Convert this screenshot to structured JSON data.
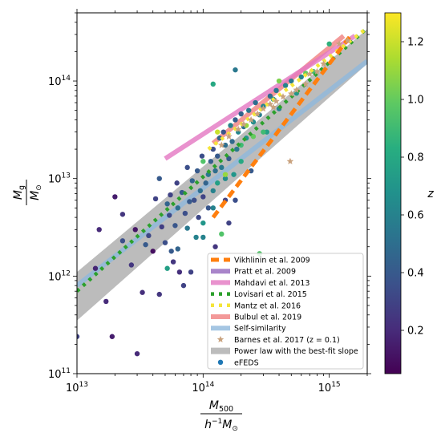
{
  "chart_data": {
    "type": "scatter",
    "x_scale": "log",
    "y_scale": "log",
    "xlim": [
      10000000000000.0,
      2000000000000000.0
    ],
    "ylim": [
      100000000000.0,
      500000000000000.0
    ],
    "grid": false,
    "legend_placement": "lower-right",
    "xlabel": {
      "top": "M500",
      "top_main": "M",
      "top_sub": "500",
      "bottom": "h^-1 M_⊙"
    },
    "ylabel": {
      "top": "Mg",
      "top_main": "M",
      "top_sub": "g",
      "bottom": "M_⊙"
    },
    "x_ticks": [
      {
        "value": 10000000000000.0,
        "base": "10",
        "exp": "13"
      },
      {
        "value": 100000000000000.0,
        "base": "10",
        "exp": "14"
      },
      {
        "value": 1000000000000000.0,
        "base": "10",
        "exp": "15"
      }
    ],
    "y_ticks": [
      {
        "value": 100000000000.0,
        "base": "10",
        "exp": "11"
      },
      {
        "value": 1000000000000.0,
        "base": "10",
        "exp": "12"
      },
      {
        "value": 10000000000000.0,
        "base": "10",
        "exp": "13"
      },
      {
        "value": 100000000000000.0,
        "base": "10",
        "exp": "14"
      }
    ],
    "colorbar": {
      "label": "z",
      "range": [
        0.05,
        1.3
      ],
      "colormap": "viridis",
      "ticks": [
        {
          "value": 0.2,
          "label": "0.2"
        },
        {
          "value": 0.4,
          "label": "0.4"
        },
        {
          "value": 0.6,
          "label": "0.6"
        },
        {
          "value": 0.8,
          "label": "0.8"
        },
        {
          "value": 1.0,
          "label": "1.0"
        },
        {
          "value": 1.2,
          "label": "1.2"
        }
      ]
    },
    "relations": [
      {
        "name": "Vikhlinin et al. 2009",
        "color": "#ff7f0e",
        "style": "dashed",
        "x": [
          120000000000000.0,
          1500000000000000.0
        ],
        "y": [
          4000000000000.0,
          300000000000000.0
        ]
      },
      {
        "name": "Pratt et al. 2009",
        "color": "#9467bd",
        "style": "solid",
        "x": [],
        "y": []
      },
      {
        "name": "Mahdavi et al. 2013",
        "color": "#e377c2",
        "style": "solid",
        "x": [
          50000000000000.0,
          1600000000000000.0
        ],
        "y": [
          16000000000000.0,
          290000000000000.0
        ]
      },
      {
        "name": "Lovisari et al. 2015",
        "color": "#2ca02c",
        "style": "dotted",
        "x": [
          10000000000000.0,
          2000000000000000.0
        ],
        "y": [
          700000000000.0,
          350000000000000.0
        ]
      },
      {
        "name": "Mantz et al. 2016",
        "color": "#f5e53a",
        "style": "dotted",
        "x": [
          110000000000000.0,
          2000000000000000.0
        ],
        "y": [
          20000000000000.0,
          350000000000000.0
        ]
      },
      {
        "name": "Bulbul et al. 2019",
        "color": "#f08080",
        "style": "solid",
        "x": [
          120000000000000.0,
          1300000000000000.0
        ],
        "y": [
          23000000000000.0,
          290000000000000.0
        ]
      },
      {
        "name": "Self-similarity",
        "color": "#8fb8dc",
        "style": "solid",
        "x": [
          10000000000000.0,
          2000000000000000.0
        ],
        "y": [
          800000000000.0,
          160000000000000.0
        ]
      }
    ],
    "barnes": {
      "name": "Barnes et al. 2017 (z = 0.1)",
      "color": "#c9a27e",
      "points": [
        [
          140000000000000.0,
          22000000000000.0
        ],
        [
          160000000000000.0,
          27000000000000.0
        ],
        [
          190000000000000.0,
          32000000000000.0
        ],
        [
          210000000000000.0,
          36000000000000.0
        ],
        [
          240000000000000.0,
          40000000000000.0
        ],
        [
          270000000000000.0,
          46000000000000.0
        ],
        [
          300000000000000.0,
          52000000000000.0
        ],
        [
          340000000000000.0,
          58000000000000.0
        ],
        [
          380000000000000.0,
          62000000000000.0
        ],
        [
          430000000000000.0,
          69000000000000.0
        ],
        [
          500000000000000.0,
          74000000000000.0
        ],
        [
          550000000000000.0,
          81000000000000.0
        ],
        [
          650000000000000.0,
          93000000000000.0
        ],
        [
          700000000000000.0,
          118000000000000.0
        ],
        [
          800000000000000.0,
          125000000000000.0
        ],
        [
          900000000000000.0,
          150000000000000.0
        ],
        [
          1200000000000000.0,
          240000000000000.0
        ],
        [
          1400000000000000.0,
          260000000000000.0
        ],
        [
          490000000000000.0,
          15000000000000.0
        ],
        [
          360000000000000.0,
          54000000000000.0
        ]
      ]
    },
    "powerlaw_band": {
      "name": "Power law with the best-fit slope",
      "color": "#a0a0a0",
      "x": [
        10000000000000.0,
        2000000000000000.0
      ],
      "upper": [
        1100000000000.0,
        340000000000000.0
      ],
      "lower": [
        350000000000.0,
        150000000000000.0
      ]
    },
    "efeds": {
      "name": "eFEDS",
      "points": [
        [
          10000000000000.0,
          240000000000.0,
          0.3
        ],
        [
          17000000000000.0,
          550000000000.0,
          0.2
        ],
        [
          19000000000000.0,
          240000000000.0,
          0.15
        ],
        [
          20000000000000.0,
          6500000000000.0,
          0.15
        ],
        [
          27000000000000.0,
          1300000000000.0,
          0.25
        ],
        [
          30000000000000.0,
          160000000000.0,
          0.2
        ],
        [
          33000000000000.0,
          680000000000.0,
          0.22
        ],
        [
          15000000000000.0,
          3000000000000.0,
          0.2
        ],
        [
          14000000000000.0,
          1200000000000.0,
          0.18
        ],
        [
          23000000000000.0,
          2300000000000.0,
          0.35
        ],
        [
          23000000000000.0,
          4300000000000.0,
          0.25
        ],
        [
          29000000000000.0,
          3000000000000.0,
          0.12
        ],
        [
          35000000000000.0,
          2100000000000.0,
          0.4
        ],
        [
          37000000000000.0,
          2600000000000.0,
          0.32
        ],
        [
          40000000000000.0,
          1800000000000.0,
          0.1
        ],
        [
          42000000000000.0,
          6200000000000.0,
          0.3
        ],
        [
          45000000000000.0,
          10000000000000.0,
          0.4
        ],
        [
          45000000000000.0,
          650000000000.0,
          0.25
        ],
        [
          47000000000000.0,
          3200000000000.0,
          0.28
        ],
        [
          50000000000000.0,
          2200000000000.0,
          0.35
        ],
        [
          52000000000000.0,
          5500000000000.0,
          0.45
        ],
        [
          54000000000000.0,
          4200000000000.0,
          0.33
        ],
        [
          55000000000000.0,
          6800000000000.0,
          0.3
        ],
        [
          56000000000000.0,
          1800000000000.0,
          0.4
        ],
        [
          58000000000000.0,
          1400000000000.0,
          0.25
        ],
        [
          60000000000000.0,
          3300000000000.0,
          0.38
        ],
        [
          62000000000000.0,
          9000000000000.0,
          0.3
        ],
        [
          63000000000000.0,
          5000000000000.0,
          0.5
        ],
        [
          65000000000000.0,
          1100000000000.0,
          0.22
        ],
        [
          68000000000000.0,
          7200000000000.0,
          0.4
        ],
        [
          70000000000000.0,
          800000000000.0,
          0.3
        ],
        [
          72000000000000.0,
          4400000000000.0,
          0.35
        ],
        [
          75000000000000.0,
          3100000000000.0,
          0.55
        ],
        [
          75000000000000.0,
          13000000000000.0,
          0.35
        ],
        [
          78000000000000.0,
          5800000000000.0,
          0.4
        ],
        [
          80000000000000.0,
          1100000000000.0,
          0.3
        ],
        [
          82000000000000.0,
          9500000000000.0,
          0.45
        ],
        [
          85000000000000.0,
          6000000000000.0,
          0.35
        ],
        [
          88000000000000.0,
          2500000000000.0,
          0.6
        ],
        [
          90000000000000.0,
          12000000000000.0,
          0.4
        ],
        [
          92000000000000.0,
          4000000000000.0,
          0.32
        ],
        [
          95000000000000.0,
          7500000000000.0,
          0.5
        ],
        [
          98000000000000.0,
          17000000000000.0,
          0.35
        ],
        [
          100000000000000.0,
          3500000000000.0,
          0.7
        ],
        [
          100000000000000.0,
          6500000000000.0,
          0.3
        ],
        [
          105000000000000.0,
          9000000000000.0,
          0.45
        ],
        [
          110000000000000.0,
          11000000000000.0,
          0.55
        ],
        [
          110000000000000.0,
          5000000000000.0,
          0.38
        ],
        [
          115000000000000.0,
          15000000000000.0,
          0.42
        ],
        [
          120000000000000.0,
          20000000000000.0,
          0.35
        ],
        [
          120000000000000.0,
          7500000000000.0,
          0.6
        ],
        [
          125000000000000.0,
          12000000000000.0,
          0.5
        ],
        [
          130000000000000.0,
          17000000000000.0,
          0.4
        ],
        [
          130000000000000.0,
          9000000000000.0,
          0.75
        ],
        [
          135000000000000.0,
          26000000000000.0,
          0.45
        ],
        [
          140000000000000.0,
          13000000000000.0,
          0.55
        ],
        [
          145000000000000.0,
          30000000000000.0,
          0.38
        ],
        [
          150000000000000.0,
          10000000000000.0,
          0.65
        ],
        [
          150000000000000.0,
          22000000000000.0,
          0.5
        ],
        [
          160000000000000.0,
          16000000000000.0,
          0.4
        ],
        [
          165000000000000.0,
          35000000000000.0,
          0.6
        ],
        [
          170000000000000.0,
          24000000000000.0,
          0.48
        ],
        [
          175000000000000.0,
          11000000000000.0,
          0.7
        ],
        [
          180000000000000.0,
          40000000000000.0,
          0.42
        ],
        [
          185000000000000.0,
          20000000000000.0,
          0.55
        ],
        [
          190000000000000.0,
          30000000000000.0,
          0.62
        ],
        [
          200000000000000.0,
          46000000000000.0,
          0.45
        ],
        [
          200000000000000.0,
          15000000000000.0,
          0.8
        ],
        [
          210000000000000.0,
          34000000000000.0,
          0.5
        ],
        [
          220000000000000.0,
          26000000000000.0,
          0.7
        ],
        [
          230000000000000.0,
          50000000000000.0,
          0.55
        ],
        [
          240000000000000.0,
          12000000000000.0,
          0.4
        ],
        [
          250000000000000.0,
          38000000000000.0,
          0.65
        ],
        [
          260000000000000.0,
          60000000000000.0,
          0.5
        ],
        [
          280000000000000.0,
          45000000000000.0,
          0.58
        ],
        [
          300000000000000.0,
          55000000000000.0,
          0.62
        ],
        [
          320000000000000.0,
          30000000000000.0,
          0.75
        ],
        [
          340000000000000.0,
          70000000000000.0,
          0.5
        ],
        [
          360000000000000.0,
          65000000000000.0,
          0.68
        ],
        [
          380000000000000.0,
          80000000000000.0,
          0.55
        ],
        [
          400000000000000.0,
          52000000000000.0,
          0.6
        ],
        [
          450000000000000.0,
          90000000000000.0,
          0.6
        ],
        [
          500000000000000.0,
          100000000000000.0,
          0.55
        ],
        [
          550000000000000.0,
          75000000000000.0,
          0.7
        ],
        [
          600000000000000.0,
          110000000000000.0,
          0.6
        ],
        [
          150000000000000.0,
          6000000000000.0,
          0.3
        ],
        [
          120000000000000.0,
          5000000000000.0,
          0.6
        ],
        [
          140000000000000.0,
          2700000000000.0,
          0.95
        ],
        [
          125000000000000.0,
          2000000000000.0,
          0.25
        ],
        [
          160000000000000.0,
          3500000000000.0,
          0.3
        ],
        [
          180000000000000.0,
          6000000000000.0,
          0.35
        ],
        [
          100000000000000.0,
          2500000000000.0,
          0.6
        ],
        [
          120000000000000.0,
          93000000000000.0,
          0.8
        ],
        [
          180000000000000.0,
          130000000000000.0,
          0.55
        ],
        [
          130000000000000.0,
          30000000000000.0,
          1.2
        ],
        [
          220000000000000.0,
          35000000000000.0,
          1.1
        ],
        [
          250000000000000.0,
          27000000000000.0,
          1.0
        ],
        [
          150000000000000.0,
          11000000000000.0,
          1.1
        ],
        [
          200000000000000.0,
          22000000000000.0,
          0.9
        ],
        [
          300000000000000.0,
          30000000000000.0,
          0.9
        ],
        [
          100000000000000.0,
          15000000000000.0,
          0.95
        ],
        [
          400000000000000.0,
          100000000000000.0,
          1.05
        ],
        [
          650000000000000.0,
          120000000000000.0,
          1.0
        ],
        [
          750000000000000.0,
          125000000000000.0,
          0.9
        ],
        [
          1000000000000000.0,
          240000000000000.0,
          0.85
        ],
        [
          52000000000000.0,
          1200000000000.0,
          0.75
        ],
        [
          63000000000000.0,
          1900000000000.0,
          0.45
        ],
        [
          280000000000000.0,
          1700000000000.0,
          0.95
        ]
      ]
    }
  }
}
